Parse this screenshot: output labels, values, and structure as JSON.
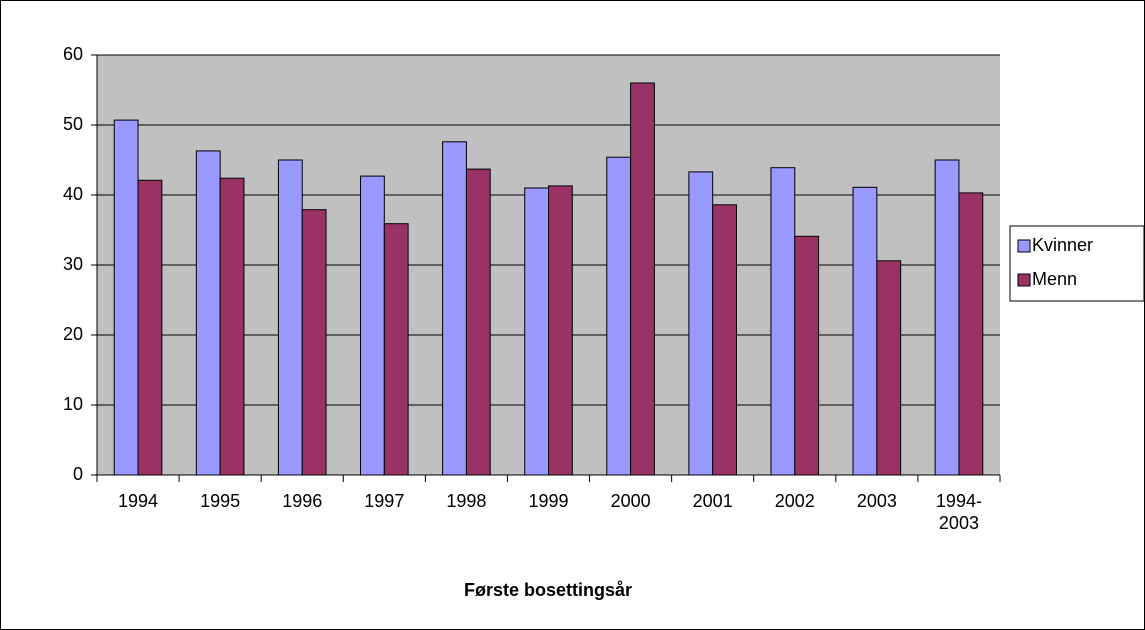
{
  "chart_data": {
    "type": "bar",
    "x_label": "Første bosettingsår",
    "categories": [
      "1994",
      "1995",
      "1996",
      "1997",
      "1998",
      "1999",
      "2000",
      "2001",
      "2002",
      "2003",
      "1994-2003"
    ],
    "series": [
      {
        "name": "Kvinner",
        "color": "#9999ff",
        "values": [
          50.7,
          46.3,
          45.0,
          42.7,
          47.6,
          41.0,
          45.4,
          43.3,
          43.9,
          41.1,
          45.0
        ]
      },
      {
        "name": "Menn",
        "color": "#993366",
        "values": [
          42.1,
          42.4,
          37.9,
          35.9,
          43.7,
          41.3,
          56.0,
          38.6,
          34.1,
          30.6,
          40.3
        ]
      }
    ],
    "ylim": [
      0,
      60
    ],
    "yticks": [
      0,
      10,
      20,
      30,
      40,
      50,
      60
    ],
    "grid": true,
    "plot_background": "#c0c0c0",
    "legend": "right"
  }
}
